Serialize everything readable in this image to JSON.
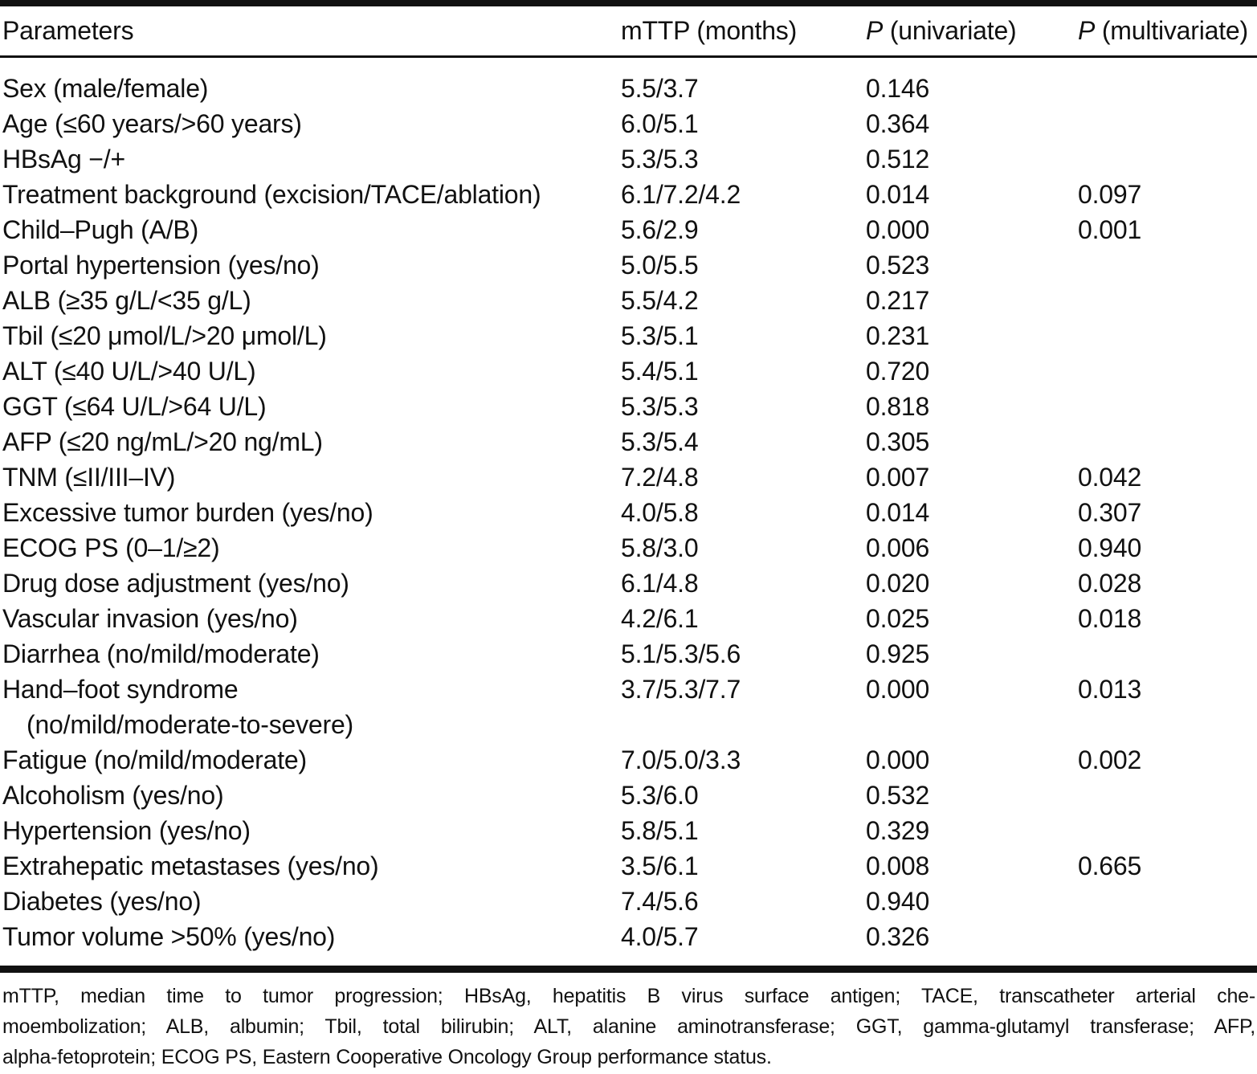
{
  "table": {
    "header": {
      "parameters": "Parameters",
      "mttp": "mTTP (months)",
      "p_uni_symbol": "P",
      "p_uni_rest": " (univariate)",
      "p_multi_symbol": "P",
      "p_multi_rest": " (multivariate)"
    },
    "rows": [
      {
        "param": "Sex (male/female)",
        "param2": "",
        "mttp": "5.5/3.7",
        "p_univariate": "0.146",
        "p_multivariate": ""
      },
      {
        "param": "Age (≤60 years/>60 years)",
        "param2": "",
        "mttp": "6.0/5.1",
        "p_univariate": "0.364",
        "p_multivariate": ""
      },
      {
        "param": "HBsAg −/+",
        "param2": "",
        "mttp": "5.3/5.3",
        "p_univariate": "0.512",
        "p_multivariate": ""
      },
      {
        "param": "Treatment background (excision/TACE/ablation)",
        "param2": "",
        "mttp": "6.1/7.2/4.2",
        "p_univariate": "0.014",
        "p_multivariate": "0.097"
      },
      {
        "param": "Child–Pugh (A/B)",
        "param2": "",
        "mttp": "5.6/2.9",
        "p_univariate": "0.000",
        "p_multivariate": "0.001"
      },
      {
        "param": "Portal hypertension (yes/no)",
        "param2": "",
        "mttp": "5.0/5.5",
        "p_univariate": "0.523",
        "p_multivariate": ""
      },
      {
        "param": "ALB (≥35 g/L/<35 g/L)",
        "param2": "",
        "mttp": "5.5/4.2",
        "p_univariate": "0.217",
        "p_multivariate": ""
      },
      {
        "param": "Tbil (≤20 μmol/L/>20 μmol/L)",
        "param2": "",
        "mttp": "5.3/5.1",
        "p_univariate": "0.231",
        "p_multivariate": ""
      },
      {
        "param": "ALT (≤40 U/L/>40 U/L)",
        "param2": "",
        "mttp": "5.4/5.1",
        "p_univariate": "0.720",
        "p_multivariate": ""
      },
      {
        "param": "GGT (≤64 U/L/>64 U/L)",
        "param2": "",
        "mttp": "5.3/5.3",
        "p_univariate": "0.818",
        "p_multivariate": ""
      },
      {
        "param": "AFP (≤20 ng/mL/>20 ng/mL)",
        "param2": "",
        "mttp": "5.3/5.4",
        "p_univariate": "0.305",
        "p_multivariate": ""
      },
      {
        "param": "TNM (≤II/III–IV)",
        "param2": "",
        "mttp": "7.2/4.8",
        "p_univariate": "0.007",
        "p_multivariate": "0.042"
      },
      {
        "param": "Excessive tumor burden (yes/no)",
        "param2": "",
        "mttp": "4.0/5.8",
        "p_univariate": "0.014",
        "p_multivariate": "0.307"
      },
      {
        "param": "ECOG PS (0–1/≥2)",
        "param2": "",
        "mttp": "5.8/3.0",
        "p_univariate": "0.006",
        "p_multivariate": "0.940"
      },
      {
        "param": "Drug dose adjustment (yes/no)",
        "param2": "",
        "mttp": "6.1/4.8",
        "p_univariate": "0.020",
        "p_multivariate": "0.028"
      },
      {
        "param": "Vascular invasion (yes/no)",
        "param2": "",
        "mttp": "4.2/6.1",
        "p_univariate": "0.025",
        "p_multivariate": "0.018"
      },
      {
        "param": "Diarrhea (no/mild/moderate)",
        "param2": "",
        "mttp": "5.1/5.3/5.6",
        "p_univariate": "0.925",
        "p_multivariate": ""
      },
      {
        "param": "Hand–foot syndrome",
        "param2": "(no/mild/moderate-to-severe)",
        "mttp": "3.7/5.3/7.7",
        "p_univariate": "0.000",
        "p_multivariate": "0.013"
      },
      {
        "param": "Fatigue (no/mild/moderate)",
        "param2": "",
        "mttp": "7.0/5.0/3.3",
        "p_univariate": "0.000",
        "p_multivariate": "0.002"
      },
      {
        "param": "Alcoholism (yes/no)",
        "param2": "",
        "mttp": "5.3/6.0",
        "p_univariate": "0.532",
        "p_multivariate": ""
      },
      {
        "param": "Hypertension (yes/no)",
        "param2": "",
        "mttp": "5.8/5.1",
        "p_univariate": "0.329",
        "p_multivariate": ""
      },
      {
        "param": "Extrahepatic metastases (yes/no)",
        "param2": "",
        "mttp": "3.5/6.1",
        "p_univariate": "0.008",
        "p_multivariate": "0.665"
      },
      {
        "param": "Diabetes (yes/no)",
        "param2": "",
        "mttp": "7.4/5.6",
        "p_univariate": "0.940",
        "p_multivariate": ""
      },
      {
        "param": "Tumor volume >50% (yes/no)",
        "param2": "",
        "mttp": "4.0/5.7",
        "p_univariate": "0.326",
        "p_multivariate": ""
      }
    ]
  },
  "footnote": {
    "lines": [
      "mTTP, median time to tumor progression; HBsAg, hepatitis B virus surface antigen; TACE, transcatheter arterial che-",
      "moembolization; ALB, albumin; Tbil, total bilirubin; ALT, alanine aminotransferase; GGT, gamma-glutamyl transferase; AFP,",
      "alpha-fetoprotein; ECOG PS, Eastern Cooperative Oncology Group performance status."
    ]
  },
  "colors": {
    "text": "#111111",
    "rule": "#111111",
    "background": "#ffffff"
  }
}
